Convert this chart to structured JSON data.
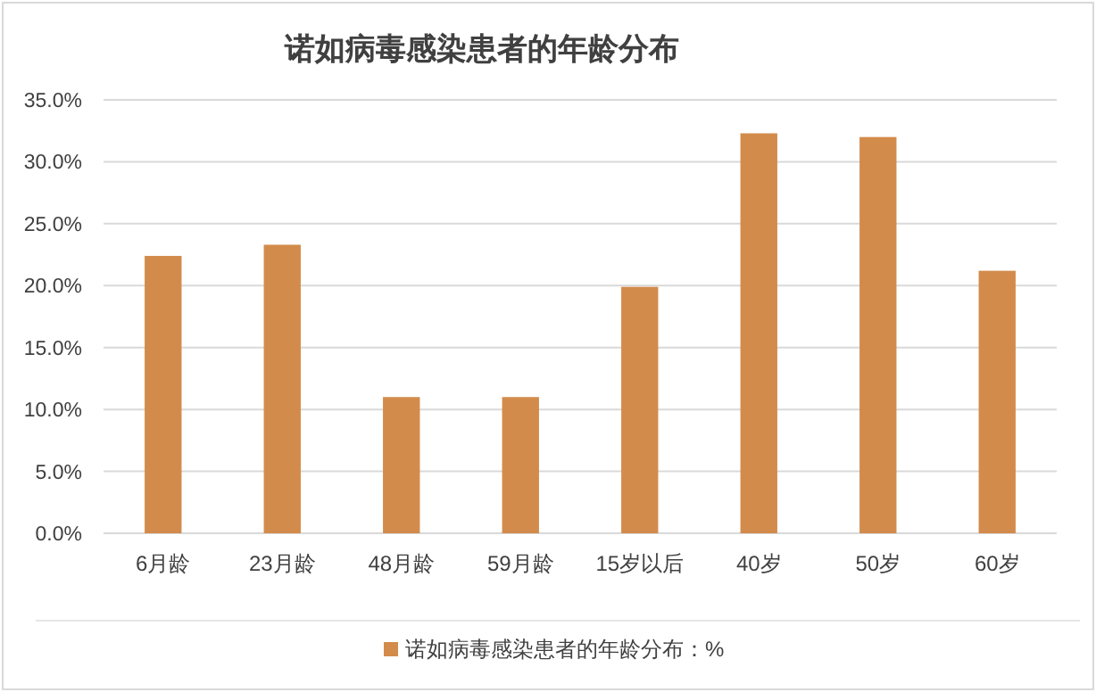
{
  "chart_data": {
    "type": "bar",
    "title": "诺如病毒感染患者的年龄分布",
    "categories": [
      "6月龄",
      "23月龄",
      "48月龄",
      "59月龄",
      "15岁以后",
      "40岁",
      "50岁",
      "60岁"
    ],
    "series": [
      {
        "name": "诺如病毒感染患者的年龄分布：%",
        "color": "#d38b4c",
        "values": [
          22.4,
          23.3,
          11.0,
          11.0,
          19.9,
          32.3,
          32.0,
          21.2
        ]
      }
    ],
    "ylim": [
      0,
      35
    ],
    "yticks": [
      {
        "value": 0,
        "label": "0.0%"
      },
      {
        "value": 5,
        "label": "5.0%"
      },
      {
        "value": 10,
        "label": "10.0%"
      },
      {
        "value": 15,
        "label": "15.0%"
      },
      {
        "value": 20,
        "label": "20.0%"
      },
      {
        "value": 25,
        "label": "25.0%"
      },
      {
        "value": 30,
        "label": "30.0%"
      },
      {
        "value": 35,
        "label": "35.0%"
      }
    ],
    "grid": "y",
    "legend": "bottom"
  }
}
